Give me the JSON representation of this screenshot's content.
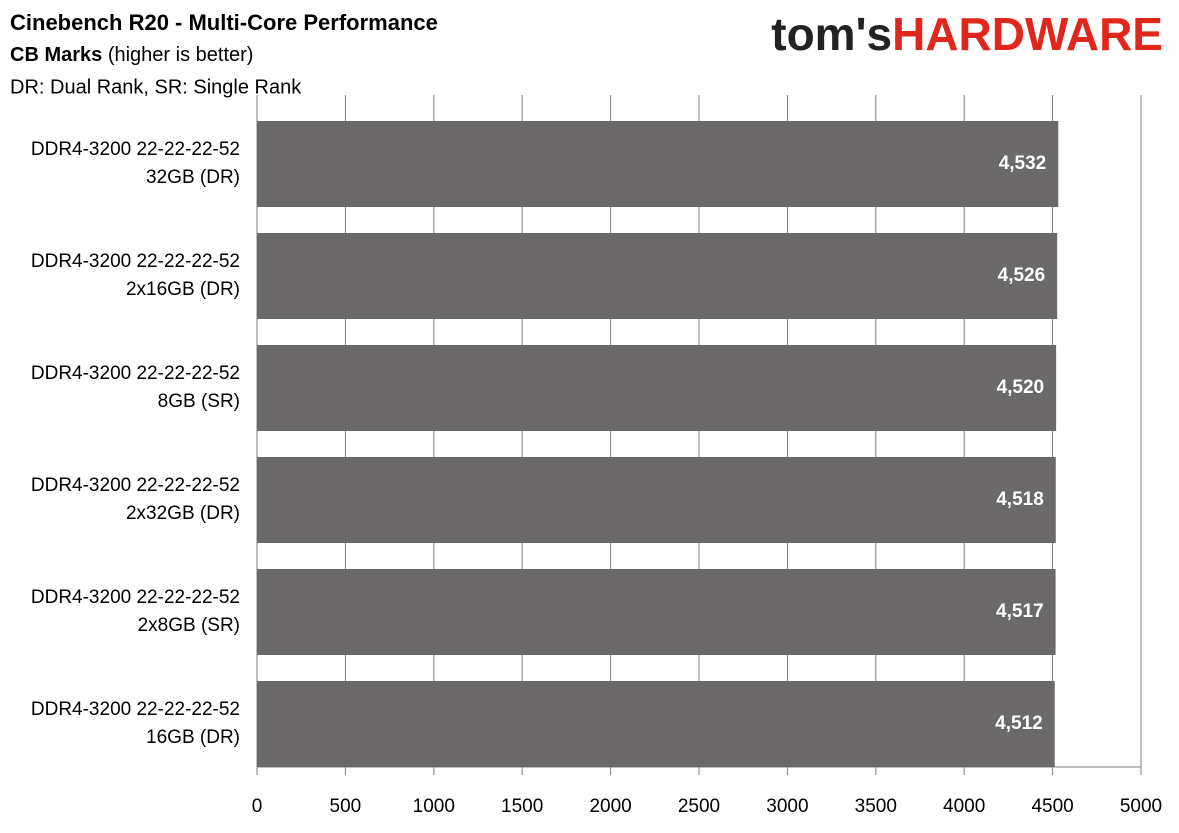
{
  "logo": {
    "left": "tom's",
    "right": "HARDWARE"
  },
  "chart_data": {
    "type": "bar",
    "orientation": "horizontal",
    "title": "Cinebench R20 - Multi-Core Performance",
    "subtitle": {
      "bold": "CB Marks",
      "normal": "(higher is better)"
    },
    "note": "DR: Dual Rank, SR: Single Rank",
    "categories": [
      [
        "DDR4-3200 22-22-22-52",
        "32GB (DR)"
      ],
      [
        "DDR4-3200 22-22-22-52",
        "2x16GB (DR)"
      ],
      [
        "DDR4-3200 22-22-22-52",
        "8GB (SR)"
      ],
      [
        "DDR4-3200 22-22-22-52",
        "2x32GB (DR)"
      ],
      [
        "DDR4-3200 22-22-22-52",
        "2x8GB (SR)"
      ],
      [
        "DDR4-3200 22-22-22-52",
        "16GB (DR)"
      ]
    ],
    "values": [
      4532,
      4526,
      4520,
      4518,
      4517,
      4512
    ],
    "value_labels": [
      "4,532",
      "4,526",
      "4,520",
      "4,518",
      "4,517",
      "4,512"
    ],
    "color": "#6b6969",
    "xlim": [
      0,
      5000
    ],
    "xticks": [
      0,
      500,
      1000,
      1500,
      2000,
      2500,
      3000,
      3500,
      4000,
      4500,
      5000
    ],
    "grid": true
  }
}
